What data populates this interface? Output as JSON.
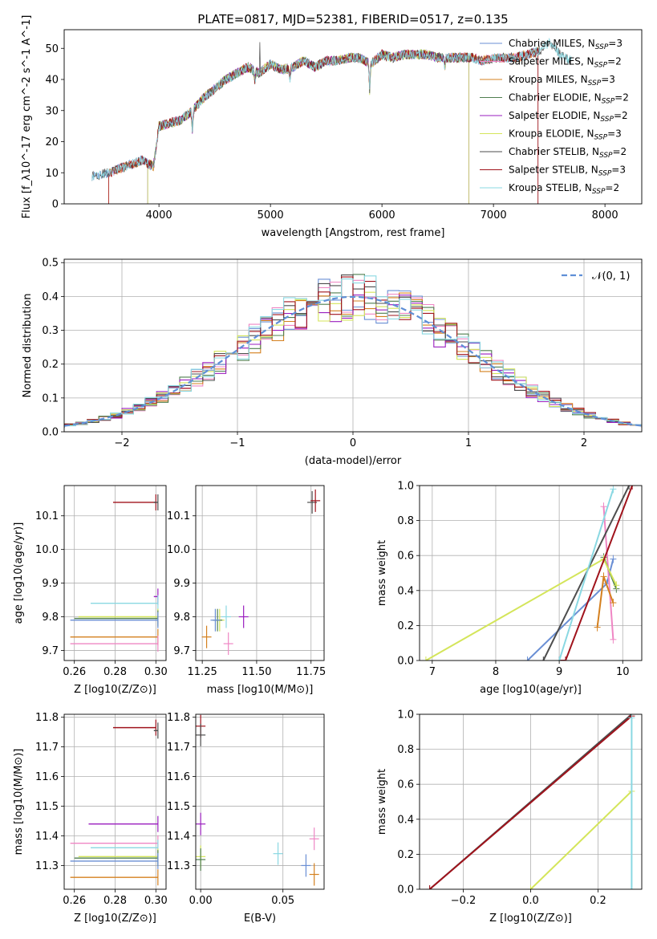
{
  "figure": {
    "title": "PLATE=0817, MJD=52381, FIBERID=0517, z=0.135"
  },
  "colors": {
    "Chabrier MILES": "#6a8fd4",
    "Salpeter MILES": "#ef86c4",
    "Kroupa MILES": "#d4801f",
    "Chabrier ELODIE": "#4f7f4f",
    "Salpeter ELODIE": "#9a1ebf",
    "Kroupa ELODIE": "#d4e55a",
    "Chabrier STELIB": "#4d4d4d",
    "Salpeter STELIB": "#a0131c",
    "Kroupa STELIB": "#8ad8e2"
  },
  "chart_data": [
    {
      "type": "line",
      "panel": "spectrum",
      "xlabel": "wavelength [Angstrom, rest frame]",
      "ylabel": "Flux [f_λ10^-17 erg cm^-2 s^-1 A^-1]",
      "xlim": [
        3150,
        8330
      ],
      "ylim": [
        0,
        56
      ],
      "xticks": [
        "4000",
        "5000",
        "6000",
        "7000",
        "8000"
      ],
      "yticks": [
        "0",
        "10",
        "20",
        "30",
        "40",
        "50"
      ],
      "grid": false,
      "legend": "top-right",
      "spectrum_points": [
        [
          3400,
          9
        ],
        [
          3550,
          10
        ],
        [
          3700,
          12
        ],
        [
          3850,
          14
        ],
        [
          3950,
          12
        ],
        [
          4000,
          25
        ],
        [
          4100,
          26
        ],
        [
          4200,
          27
        ],
        [
          4300,
          30
        ],
        [
          4400,
          34
        ],
        [
          4500,
          37
        ],
        [
          4600,
          40
        ],
        [
          4700,
          42
        ],
        [
          4800,
          44
        ],
        [
          4900,
          42
        ],
        [
          5000,
          45
        ],
        [
          5100,
          43
        ],
        [
          5200,
          44
        ],
        [
          5300,
          46
        ],
        [
          5400,
          44
        ],
        [
          5500,
          46
        ],
        [
          5600,
          46
        ],
        [
          5700,
          47
        ],
        [
          5800,
          47
        ],
        [
          5900,
          45
        ],
        [
          6000,
          48
        ],
        [
          6100,
          47
        ],
        [
          6200,
          48
        ],
        [
          6300,
          48
        ],
        [
          6400,
          48
        ],
        [
          6500,
          47
        ],
        [
          6600,
          47
        ],
        [
          6700,
          47
        ],
        [
          6800,
          47
        ],
        [
          6900,
          46
        ],
        [
          7000,
          47
        ],
        [
          7100,
          47
        ],
        [
          7200,
          47
        ],
        [
          7300,
          48
        ],
        [
          7400,
          49
        ],
        [
          7500,
          52
        ],
        [
          7600,
          48
        ],
        [
          7700,
          46
        ]
      ],
      "series": [
        {
          "name": "Chabrier MILES, N_SSP=3",
          "label_main": "Chabrier MILES, N",
          "label_sub": "SSP",
          "label_end": "=3",
          "x_start": 3400,
          "x_end": 7400
        },
        {
          "name": "Salpeter MILES, N_SSP=2",
          "label_main": "Salpeter MILES, N",
          "label_sub": "SSP",
          "label_end": "=2",
          "x_start": 3550,
          "x_end": 7400
        },
        {
          "name": "Kroupa MILES, N_SSP=3",
          "label_main": "Kroupa MILES, N",
          "label_sub": "SSP",
          "label_end": "=3",
          "x_start": 3550,
          "x_end": 7400
        },
        {
          "name": "Chabrier ELODIE, N_SSP=2",
          "label_main": "Chabrier ELODIE, N",
          "label_sub": "SSP",
          "label_end": "=2",
          "x_start": 3900,
          "x_end": 6780
        },
        {
          "name": "Salpeter ELODIE, N_SSP=2",
          "label_main": "Salpeter ELODIE, N",
          "label_sub": "SSP",
          "label_end": "=2",
          "x_start": 3900,
          "x_end": 6780
        },
        {
          "name": "Kroupa ELODIE, N_SSP=3",
          "label_main": "Kroupa ELODIE, N",
          "label_sub": "SSP",
          "label_end": "=3",
          "x_start": 3900,
          "x_end": 6780
        },
        {
          "name": "Chabrier STELIB, N_SSP=2",
          "label_main": "Chabrier STELIB, N",
          "label_sub": "SSP",
          "label_end": "=2",
          "x_start": 3400,
          "x_end": 7700
        },
        {
          "name": "Salpeter STELIB, N_SSP=3",
          "label_main": "Salpeter STELIB, N",
          "label_sub": "SSP",
          "label_end": "=3",
          "x_start": 3550,
          "x_end": 7400
        },
        {
          "name": "Kroupa STELIB, N_SSP=2",
          "label_main": "Kroupa STELIB, N",
          "label_sub": "SSP",
          "label_end": "=2",
          "x_start": 3400,
          "x_end": 7700
        }
      ]
    },
    {
      "type": "histogram",
      "panel": "residuals",
      "xlabel": "(data-model)/error",
      "ylabel": "Normed distribution",
      "xlim": [
        -2.5,
        2.5
      ],
      "ylim": [
        0,
        0.51
      ],
      "xticks": [
        "−2",
        "−1",
        "0",
        "1",
        "2"
      ],
      "yticks": [
        "0.0",
        "0.1",
        "0.2",
        "0.3",
        "0.4",
        "0.5"
      ],
      "grid": true,
      "legend": "top-right",
      "curve_label": "𝒩(0, 1)",
      "bin_width": 0.1
    },
    {
      "type": "scatter",
      "panel": "age-Z",
      "xlabel": "Z [log10(Z/Z⊙)]",
      "ylabel": "age  [log10(age/yr)]",
      "xlim": [
        0.255,
        0.305
      ],
      "ylim": [
        9.67,
        10.19
      ],
      "xticks": [
        "0.26",
        "0.28",
        "0.30"
      ],
      "yticks": [
        "9.7",
        "9.8",
        "9.9",
        "10.0",
        "10.1"
      ],
      "points": [
        {
          "series": "Salpeter STELIB",
          "y": 10.14,
          "xmin": 0.279,
          "xmax": 0.3
        },
        {
          "series": "Chabrier STELIB",
          "y": 10.14,
          "xmin": 0.299,
          "xmax": 0.301
        },
        {
          "series": "Salpeter ELODIE",
          "y": 9.86,
          "xmin": 0.299,
          "xmax": 0.301
        },
        {
          "series": "Kroupa STELIB",
          "y": 9.84,
          "xmin": 0.268,
          "xmax": 0.301
        },
        {
          "series": "Kroupa ELODIE",
          "y": 9.8,
          "xmin": 0.262,
          "xmax": 0.301
        },
        {
          "series": "Chabrier ELODIE",
          "y": 9.795,
          "xmin": 0.26,
          "xmax": 0.301
        },
        {
          "series": "Chabrier MILES",
          "y": 9.79,
          "xmin": 0.258,
          "xmax": 0.301
        },
        {
          "series": "Kroupa MILES",
          "y": 9.74,
          "xmin": 0.258,
          "xmax": 0.301
        },
        {
          "series": "Salpeter MILES",
          "y": 9.72,
          "xmin": 0.258,
          "xmax": 0.301
        }
      ]
    },
    {
      "type": "scatter",
      "panel": "age-mass",
      "xlabel": "mass [log10(M/M⊙)]",
      "ylabel": "",
      "xlim": [
        11.22,
        11.81
      ],
      "ylim": [
        9.67,
        10.19
      ],
      "xticks": [
        "11.25",
        "11.50",
        "11.75"
      ],
      "yticks": [
        "9.7",
        "9.8",
        "9.9",
        "10.0",
        "10.1"
      ],
      "points": [
        {
          "series": "Chabrier STELIB",
          "x": 11.755,
          "y": 10.14
        },
        {
          "series": "Salpeter STELIB",
          "x": 11.77,
          "y": 10.145
        },
        {
          "series": "Salpeter ELODIE",
          "x": 11.44,
          "y": 9.8
        },
        {
          "series": "Kroupa STELIB",
          "x": 11.36,
          "y": 9.8
        },
        {
          "series": "Kroupa ELODIE",
          "x": 11.33,
          "y": 9.79
        },
        {
          "series": "Chabrier ELODIE",
          "x": 11.32,
          "y": 9.79
        },
        {
          "series": "Chabrier MILES",
          "x": 11.31,
          "y": 9.79
        },
        {
          "series": "Kroupa MILES",
          "x": 11.27,
          "y": 9.74
        },
        {
          "series": "Salpeter MILES",
          "x": 11.37,
          "y": 9.72
        }
      ]
    },
    {
      "type": "line",
      "panel": "weight-age",
      "xlabel": "age  [log10(age/yr)]",
      "ylabel": "mass weight",
      "xlim": [
        6.8,
        10.3
      ],
      "ylim": [
        0,
        1
      ],
      "xticks": [
        "7",
        "8",
        "9",
        "10"
      ],
      "yticks": [
        "0.0",
        "0.2",
        "0.4",
        "0.6",
        "0.8",
        "1.0"
      ],
      "series": [
        {
          "series": "Chabrier MILES",
          "x": [
            8.5,
            9.75,
            9.85
          ],
          "y": [
            0,
            0.44,
            0.58
          ]
        },
        {
          "series": "Salpeter MILES",
          "x": [
            9.7,
            9.85
          ],
          "y": [
            0.88,
            0.12
          ]
        },
        {
          "series": "Kroupa MILES",
          "x": [
            9.6,
            9.7,
            9.85
          ],
          "y": [
            0.19,
            0.48,
            0.33
          ]
        },
        {
          "series": "Chabrier ELODIE",
          "x": [
            9.7,
            9.9
          ],
          "y": [
            0.59,
            0.41
          ]
        },
        {
          "series": "Salpeter ELODIE",
          "x": [
            9.0,
            9.1
          ],
          "y": [
            0,
            0
          ]
        },
        {
          "series": "Kroupa ELODIE",
          "x": [
            6.9,
            9.7,
            9.9
          ],
          "y": [
            0,
            0.58,
            0.43
          ]
        },
        {
          "series": "Chabrier STELIB",
          "x": [
            8.75,
            10.1
          ],
          "y": [
            0,
            1.0
          ]
        },
        {
          "series": "Salpeter STELIB",
          "x": [
            9.0,
            9.1,
            10.15
          ],
          "y": [
            0,
            0,
            1.0
          ]
        },
        {
          "series": "Kroupa STELIB",
          "x": [
            9.0,
            9.85
          ],
          "y": [
            0,
            0.98
          ]
        }
      ]
    },
    {
      "type": "scatter",
      "panel": "mass-Z",
      "xlabel": "Z [log10(Z/Z⊙)]",
      "ylabel": "mass [log10(M/M⊙)]",
      "xlim": [
        0.255,
        0.305
      ],
      "ylim": [
        11.22,
        11.81
      ],
      "xticks": [
        "0.26",
        "0.28",
        "0.30"
      ],
      "yticks": [
        "11.3",
        "11.4",
        "11.5",
        "11.6",
        "11.7",
        "11.8"
      ],
      "points": [
        {
          "series": "Salpeter STELIB",
          "y": 11.765,
          "xmin": 0.279,
          "xmax": 0.3
        },
        {
          "series": "Chabrier STELIB",
          "y": 11.755,
          "xmin": 0.299,
          "xmax": 0.301
        },
        {
          "series": "Salpeter ELODIE",
          "y": 11.44,
          "xmin": 0.267,
          "xmax": 0.301
        },
        {
          "series": "Salpeter MILES",
          "y": 11.375,
          "xmin": 0.258,
          "xmax": 0.301
        },
        {
          "series": "Kroupa STELIB",
          "y": 11.36,
          "xmin": 0.268,
          "xmax": 0.301
        },
        {
          "series": "Kroupa ELODIE",
          "y": 11.33,
          "xmin": 0.262,
          "xmax": 0.301
        },
        {
          "series": "Chabrier ELODIE",
          "y": 11.325,
          "xmin": 0.26,
          "xmax": 0.301
        },
        {
          "series": "Chabrier MILES",
          "y": 11.315,
          "xmin": 0.258,
          "xmax": 0.301
        },
        {
          "series": "Kroupa MILES",
          "y": 11.26,
          "xmin": 0.258,
          "xmax": 0.301
        }
      ]
    },
    {
      "type": "scatter",
      "panel": "mass-EBV",
      "xlabel": "E(B-V)",
      "ylabel": "",
      "xlim": [
        -0.003,
        0.075
      ],
      "ylim": [
        11.22,
        11.81
      ],
      "xticks": [
        "0.00",
        "0.05"
      ],
      "yticks": [
        "11.3",
        "11.4",
        "11.5",
        "11.6",
        "11.7",
        "11.8"
      ],
      "points": [
        {
          "series": "Salpeter STELIB",
          "x": 0.0,
          "y": 11.77
        },
        {
          "series": "Chabrier STELIB",
          "x": 0.0,
          "y": 11.74
        },
        {
          "series": "Salpeter ELODIE",
          "x": 0.0,
          "y": 11.44
        },
        {
          "series": "Kroupa ELODIE",
          "x": 0.0,
          "y": 11.33
        },
        {
          "series": "Chabrier ELODIE",
          "x": 0.0,
          "y": 11.32
        },
        {
          "series": "Salpeter MILES",
          "x": 0.069,
          "y": 11.39
        },
        {
          "series": "Kroupa STELIB",
          "x": 0.047,
          "y": 11.34
        },
        {
          "series": "Chabrier MILES",
          "x": 0.064,
          "y": 11.3
        },
        {
          "series": "Kroupa MILES",
          "x": 0.069,
          "y": 11.27
        }
      ]
    },
    {
      "type": "line",
      "panel": "weight-Z",
      "xlabel": "Z [log10(Z/Z⊙)]",
      "ylabel": "mass weight",
      "xlim": [
        -0.33,
        0.33
      ],
      "ylim": [
        0,
        1
      ],
      "xticks": [
        "−0.2",
        "0.0",
        "0.2"
      ],
      "yticks": [
        "0.0",
        "0.2",
        "0.4",
        "0.6",
        "0.8",
        "1.0"
      ],
      "series": [
        {
          "series": "Chabrier STELIB",
          "x": [
            -0.3,
            0.3
          ],
          "y": [
            0,
            1.0
          ]
        },
        {
          "series": "Salpeter STELIB",
          "x": [
            -0.3,
            0.3
          ],
          "y": [
            0,
            0.99
          ]
        },
        {
          "series": "Kroupa ELODIE",
          "x": [
            0.0,
            0.3
          ],
          "y": [
            0,
            0.56
          ]
        },
        {
          "series": "Kroupa STELIB",
          "x": [
            0.3,
            0.3
          ],
          "y": [
            0,
            0.98
          ]
        }
      ]
    }
  ]
}
